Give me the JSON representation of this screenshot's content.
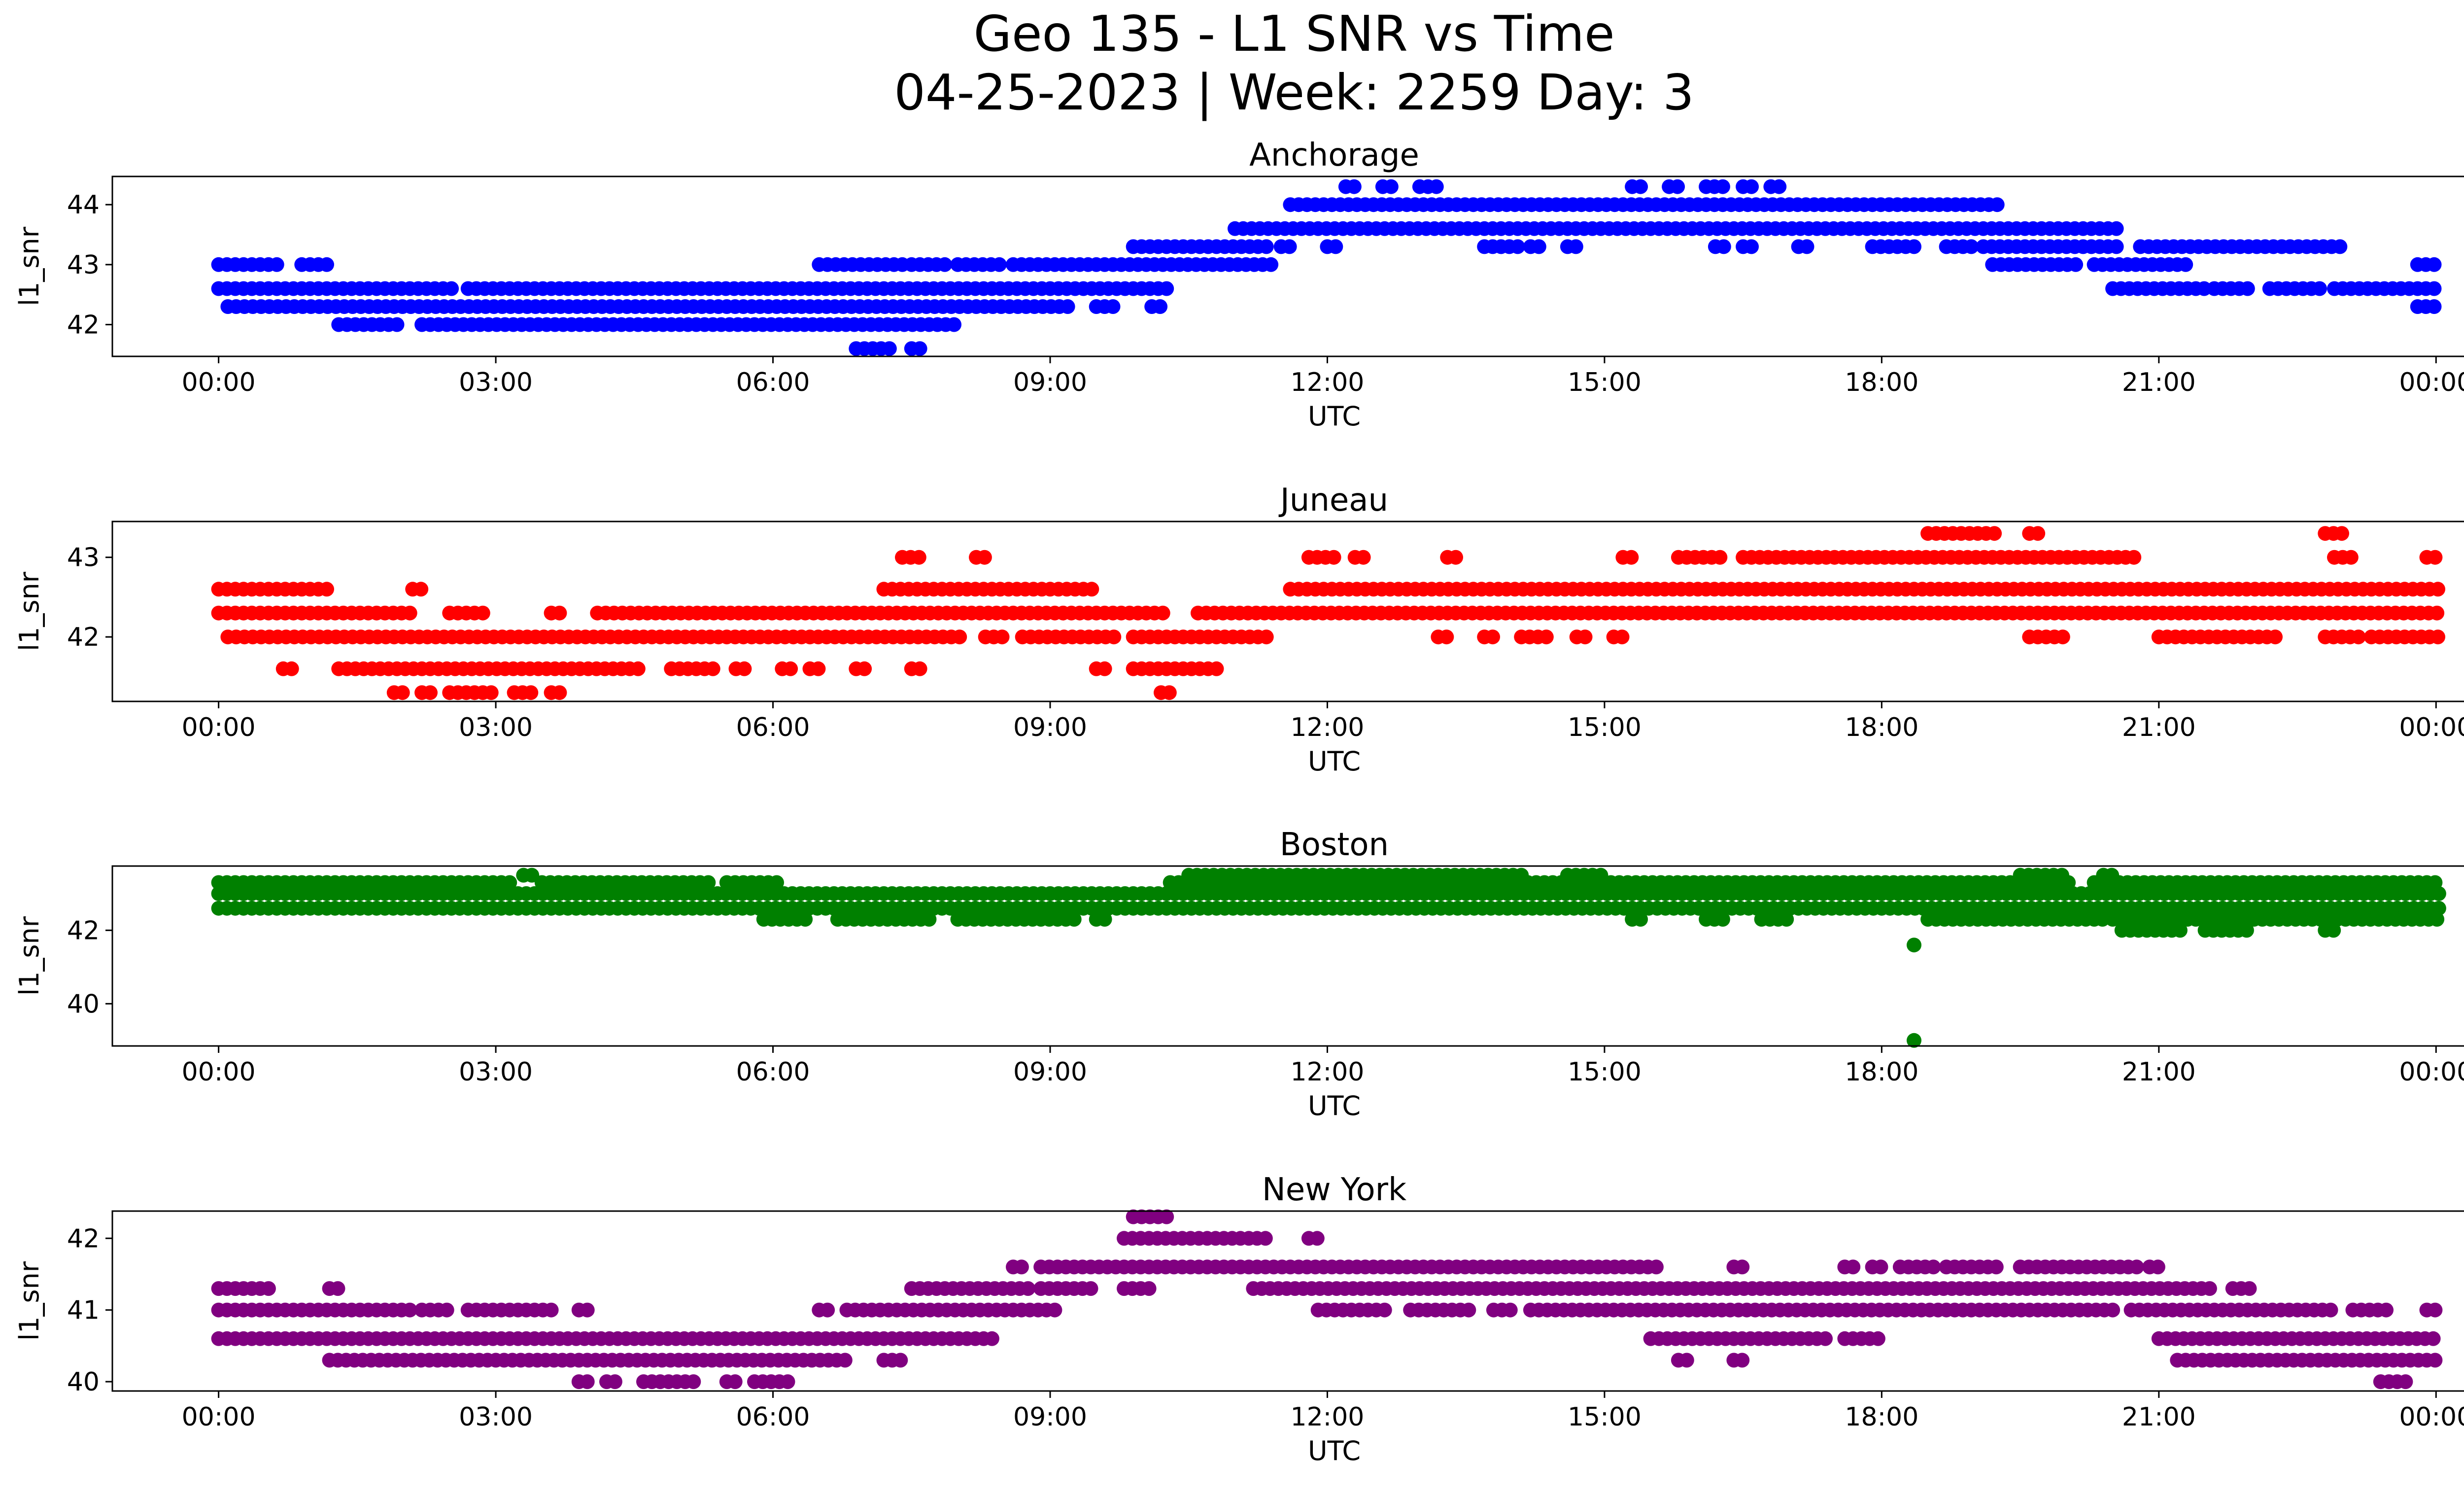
{
  "figure": {
    "title_line1": "Geo 135 - L1 SNR vs Time",
    "title_line2": "04-25-2023 | Week: 2259 Day: 3"
  },
  "chart_data": [
    {
      "type": "scatter",
      "title": "Anchorage",
      "xlabel": "UTC",
      "ylabel": "l1_snr",
      "color": "#0000ff",
      "xlim_hours": [
        -1.15,
        25.3
      ],
      "ylim": [
        41.47,
        44.47
      ],
      "xticks": [
        "00:00",
        "03:00",
        "06:00",
        "09:00",
        "12:00",
        "15:00",
        "18:00",
        "21:00",
        "00:00"
      ],
      "yticks": [
        42,
        43,
        44
      ],
      "bands": [
        {
          "y": 43.0,
          "x": [
            [
              0.0,
              0.7
            ],
            [
              0.9,
              1.2
            ],
            [
              6.5,
              7.4
            ],
            [
              7.5,
              7.9
            ],
            [
              8.0,
              8.5
            ],
            [
              8.6,
              11.4
            ],
            [
              19.2,
              20.1
            ],
            [
              20.3,
              21.3
            ],
            [
              23.8,
              24.05
            ]
          ]
        },
        {
          "y": 42.6,
          "x": [
            [
              0.0,
              2.6
            ],
            [
              2.7,
              10.3
            ],
            [
              20.5,
              21.5
            ],
            [
              21.6,
              22.0
            ],
            [
              22.2,
              22.8
            ],
            [
              22.9,
              24.05
            ]
          ]
        },
        {
          "y": 42.3,
          "x": [
            [
              0.1,
              9.2
            ],
            [
              9.5,
              9.7
            ],
            [
              10.1,
              10.2
            ],
            [
              23.8,
              24.05
            ]
          ]
        },
        {
          "y": 42.0,
          "x": [
            [
              1.3,
              2.0
            ],
            [
              2.2,
              8.0
            ]
          ]
        },
        {
          "y": 41.6,
          "x": [
            [
              6.9,
              7.3
            ],
            [
              7.5,
              7.6
            ]
          ]
        },
        {
          "y": 43.3,
          "x": [
            [
              9.9,
              11.4
            ],
            [
              11.5,
              11.6
            ],
            [
              12.0,
              12.1
            ],
            [
              13.7,
              14.1
            ],
            [
              14.2,
              14.3
            ],
            [
              14.6,
              14.7
            ],
            [
              16.2,
              16.3
            ],
            [
              16.5,
              16.6
            ],
            [
              17.1,
              17.2
            ],
            [
              17.9,
              18.4
            ],
            [
              18.7,
              19.0
            ],
            [
              19.1,
              20.6
            ],
            [
              20.8,
              23.0
            ]
          ]
        },
        {
          "y": 43.6,
          "x": [
            [
              11.0,
              20.6
            ]
          ]
        },
        {
          "y": 44.0,
          "x": [
            [
              11.6,
              19.3
            ]
          ]
        },
        {
          "y": 44.3,
          "x": [
            [
              12.2,
              12.3
            ],
            [
              12.6,
              12.7
            ],
            [
              13.0,
              13.2
            ],
            [
              15.3,
              15.4
            ],
            [
              15.7,
              15.8
            ],
            [
              16.1,
              16.3
            ],
            [
              16.5,
              16.6
            ],
            [
              16.8,
              16.9
            ]
          ]
        }
      ]
    },
    {
      "type": "scatter",
      "title": "Juneau",
      "xlabel": "UTC",
      "ylabel": "l1_snr",
      "color": "#ff0000",
      "xlim_hours": [
        -1.15,
        25.3
      ],
      "ylim": [
        41.19,
        43.45
      ],
      "xticks": [
        "00:00",
        "03:00",
        "06:00",
        "09:00",
        "12:00",
        "15:00",
        "18:00",
        "21:00",
        "00:00"
      ],
      "yticks": [
        42,
        43
      ],
      "bands": [
        {
          "y": 42.6,
          "x": [
            [
              0.0,
              1.2
            ],
            [
              2.1,
              2.2
            ],
            [
              7.2,
              9.5
            ],
            [
              11.6,
              24.05
            ]
          ]
        },
        {
          "y": 42.3,
          "x": [
            [
              0.0,
              2.1
            ],
            [
              2.5,
              2.9
            ],
            [
              3.6,
              3.7
            ],
            [
              4.1,
              10.3
            ],
            [
              10.6,
              24.05
            ]
          ]
        },
        {
          "y": 42.0,
          "x": [
            [
              0.1,
              8.1
            ],
            [
              8.3,
              8.5
            ],
            [
              8.7,
              9.7
            ],
            [
              9.9,
              11.4
            ],
            [
              13.2,
              13.3
            ],
            [
              13.7,
              13.8
            ],
            [
              14.1,
              14.4
            ],
            [
              14.7,
              14.8
            ],
            [
              15.1,
              15.2
            ],
            [
              19.6,
              20.0
            ],
            [
              21.0,
              22.3
            ],
            [
              22.8,
              23.2
            ],
            [
              23.3,
              24.05
            ]
          ]
        },
        {
          "y": 41.6,
          "x": [
            [
              0.7,
              0.8
            ],
            [
              1.3,
              4.6
            ],
            [
              4.9,
              5.4
            ],
            [
              5.6,
              5.7
            ],
            [
              6.1,
              6.2
            ],
            [
              6.4,
              6.5
            ],
            [
              6.9,
              7.0
            ],
            [
              7.5,
              7.6
            ],
            [
              9.5,
              9.6
            ],
            [
              9.9,
              10.8
            ]
          ]
        },
        {
          "y": 41.3,
          "x": [
            [
              1.9,
              2.0
            ],
            [
              2.2,
              2.3
            ],
            [
              2.5,
              3.0
            ],
            [
              3.2,
              3.4
            ],
            [
              3.6,
              3.7
            ],
            [
              10.2,
              10.3
            ]
          ]
        },
        {
          "y": 43.0,
          "x": [
            [
              7.4,
              7.6
            ],
            [
              8.2,
              8.3
            ],
            [
              11.8,
              12.1
            ],
            [
              12.3,
              12.4
            ],
            [
              13.3,
              13.4
            ],
            [
              15.2,
              15.3
            ],
            [
              15.8,
              16.3
            ],
            [
              16.5,
              20.8
            ],
            [
              22.9,
              23.1
            ],
            [
              23.9,
              24.05
            ]
          ]
        },
        {
          "y": 43.3,
          "x": [
            [
              18.5,
              19.3
            ],
            [
              19.6,
              19.7
            ],
            [
              22.8,
              23.0
            ]
          ]
        }
      ]
    },
    {
      "type": "scatter",
      "title": "Boston",
      "xlabel": "UTC",
      "ylabel": "l1_snr",
      "color": "#008000",
      "xlim_hours": [
        -1.15,
        25.3
      ],
      "ylim": [
        38.85,
        43.75
      ],
      "xticks": [
        "00:00",
        "03:00",
        "06:00",
        "09:00",
        "12:00",
        "15:00",
        "18:00",
        "21:00",
        "00:00"
      ],
      "yticks": [
        40,
        42
      ],
      "bands": [
        {
          "y": 43.3,
          "x": [
            [
              0.0,
              3.2
            ],
            [
              3.5,
              5.3
            ],
            [
              5.5,
              6.1
            ],
            [
              10.3,
              20.1
            ],
            [
              20.3,
              24.05
            ]
          ]
        },
        {
          "y": 43.5,
          "x": [
            [
              3.3,
              3.4
            ],
            [
              10.5,
              14.1
            ],
            [
              14.6,
              15.0
            ],
            [
              19.5,
              20.0
            ],
            [
              20.4,
              20.5
            ]
          ]
        },
        {
          "y": 43.0,
          "x": [
            [
              0.0,
              24.05
            ]
          ]
        },
        {
          "y": 42.6,
          "x": [
            [
              0.0,
              24.05
            ]
          ]
        },
        {
          "y": 42.3,
          "x": [
            [
              5.9,
              6.4
            ],
            [
              6.7,
              7.7
            ],
            [
              8.0,
              9.3
            ],
            [
              9.5,
              9.6
            ],
            [
              15.3,
              15.4
            ],
            [
              16.1,
              16.3
            ],
            [
              16.7,
              17.0
            ],
            [
              18.5,
              20.4
            ],
            [
              20.5,
              24.05
            ]
          ]
        },
        {
          "y": 42.0,
          "x": [
            [
              20.6,
              21.3
            ],
            [
              21.5,
              22.0
            ],
            [
              22.8,
              22.9
            ]
          ]
        },
        {
          "y": 41.6,
          "x": [
            [
              18.35,
              18.4
            ]
          ]
        },
        {
          "y": 39.0,
          "x": [
            [
              18.35,
              18.4
            ]
          ]
        }
      ]
    },
    {
      "type": "scatter",
      "title": "New York",
      "xlabel": "UTC",
      "ylabel": "l1_snr",
      "color": "#800080",
      "xlim_hours": [
        -1.15,
        25.3
      ],
      "ylim": [
        39.87,
        42.38
      ],
      "xticks": [
        "00:00",
        "03:00",
        "06:00",
        "09:00",
        "12:00",
        "15:00",
        "18:00",
        "21:00",
        "00:00"
      ],
      "yticks": [
        40,
        41,
        42
      ],
      "bands": [
        {
          "y": 41.3,
          "x": [
            [
              0.0,
              0.6
            ],
            [
              1.2,
              1.3
            ],
            [
              7.5,
              8.8
            ],
            [
              8.9,
              9.5
            ],
            [
              9.8,
              10.1
            ],
            [
              11.2,
              21.6
            ],
            [
              21.8,
              22.0
            ]
          ]
        },
        {
          "y": 41.0,
          "x": [
            [
              0.0,
              2.1
            ],
            [
              2.2,
              2.5
            ],
            [
              2.7,
              3.6
            ],
            [
              3.9,
              4.0
            ],
            [
              6.5,
              6.6
            ],
            [
              6.8,
              9.1
            ],
            [
              11.9,
              12.7
            ],
            [
              12.9,
              13.6
            ],
            [
              13.8,
              14.0
            ],
            [
              14.2,
              20.5
            ],
            [
              20.7,
              22.9
            ],
            [
              23.1,
              23.5
            ],
            [
              23.9,
              24.05
            ]
          ]
        },
        {
          "y": 40.6,
          "x": [
            [
              0.0,
              8.4
            ],
            [
              15.5,
              17.4
            ],
            [
              17.6,
              18.0
            ],
            [
              21.0,
              24.05
            ]
          ]
        },
        {
          "y": 40.3,
          "x": [
            [
              1.2,
              6.8
            ],
            [
              7.2,
              7.4
            ],
            [
              15.8,
              15.9
            ],
            [
              16.4,
              16.5
            ],
            [
              21.2,
              24.05
            ]
          ]
        },
        {
          "y": 40.0,
          "x": [
            [
              3.9,
              4.0
            ],
            [
              4.2,
              4.3
            ],
            [
              4.6,
              5.2
            ],
            [
              5.5,
              5.6
            ],
            [
              5.8,
              6.2
            ],
            [
              23.4,
              23.7
            ]
          ]
        },
        {
          "y": 41.6,
          "x": [
            [
              8.6,
              8.7
            ],
            [
              8.9,
              15.6
            ],
            [
              16.4,
              16.5
            ],
            [
              17.6,
              17.7
            ],
            [
              17.9,
              18.0
            ],
            [
              18.2,
              18.6
            ],
            [
              18.7,
              19.3
            ],
            [
              19.5,
              20.8
            ],
            [
              20.9,
              21.0
            ]
          ]
        },
        {
          "y": 42.0,
          "x": [
            [
              9.8,
              11.4
            ],
            [
              11.8,
              11.9
            ]
          ]
        },
        {
          "y": 42.3,
          "x": [
            [
              9.9,
              10.3
            ]
          ]
        }
      ]
    }
  ]
}
